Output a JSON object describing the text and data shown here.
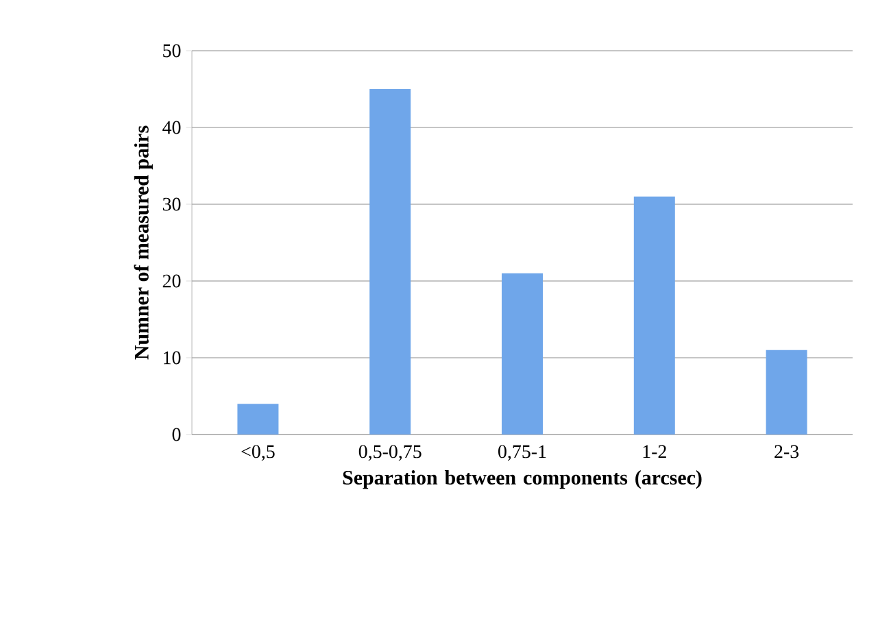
{
  "chart_data": {
    "type": "bar",
    "xlabel": "Separation between components (arcsec)",
    "ylabel": "Numner of measured pairs",
    "categories": [
      "<0,5",
      "0,5-0,75",
      "0,75-1",
      "1-2",
      "2-3"
    ],
    "values": [
      4,
      45,
      21,
      31,
      11
    ],
    "color": "#6fa6ea",
    "ylim": [
      0,
      50
    ],
    "yticks": [
      0,
      10,
      20,
      30,
      40,
      50
    ],
    "grid": "y"
  }
}
